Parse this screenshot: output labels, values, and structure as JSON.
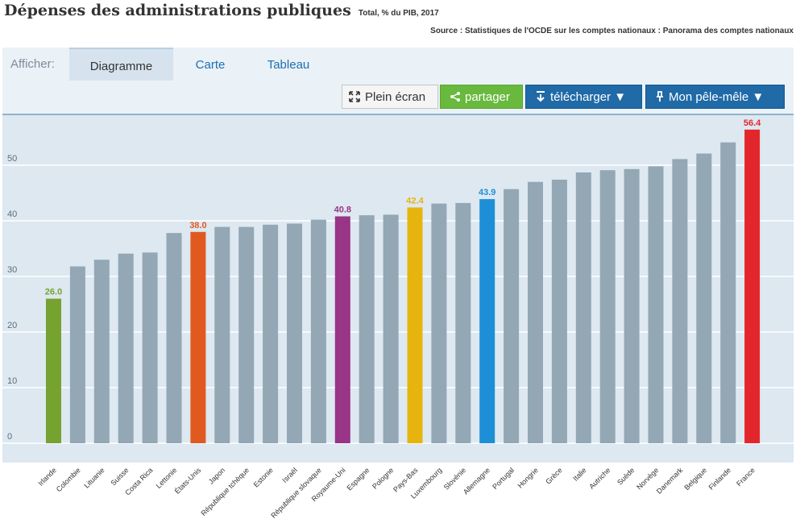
{
  "header": {
    "title": "Dépenses des administrations publiques",
    "subtitle": "Total, % du PIB, 2017",
    "source": "Source : Statistiques de l'OCDE sur les comptes nationaux : Panorama des comptes nationaux"
  },
  "controls": {
    "afficher_label": "Afficher:",
    "tabs": [
      "Diagramme",
      "Carte",
      "Tableau"
    ],
    "active_tab": "Diagramme",
    "buttons": {
      "fullscreen": "Plein écran",
      "share": "partager",
      "download": "télécharger ▼",
      "pele_mele": "Mon pêle-mêle ▼"
    }
  },
  "colors": {
    "default_bar": "#93a7b5",
    "highlight_green": "#76a22f",
    "highlight_orange": "#e05a1f",
    "highlight_purple": "#9a3487",
    "highlight_yellow": "#e6b40c",
    "highlight_blue": "#1d8fd6",
    "highlight_red": "#e3262c",
    "plot_background": "#dde8f1",
    "gridline": "#ffffff"
  },
  "chart_data": {
    "type": "bar",
    "ylim": [
      0,
      60
    ],
    "yticks": [
      0,
      10,
      20,
      30,
      40,
      50
    ],
    "grid": true,
    "categories": [
      "Irlande",
      "Colombie",
      "Lituanie",
      "Suisse",
      "Costa Rica",
      "Lettonie",
      "États-Unis",
      "Japon",
      "République tchèque",
      "Estonie",
      "Israël",
      "République slovaque",
      "Royaume-Uni",
      "Espagne",
      "Pologne",
      "Pays-Bas",
      "Luxembourg",
      "Slovénie",
      "Allemagne",
      "Portugal",
      "Hongrie",
      "Grèce",
      "Italie",
      "Autriche",
      "Suède",
      "Norvège",
      "Danemark",
      "Belgique",
      "Finlande",
      "France"
    ],
    "values": [
      26.0,
      31.8,
      33.0,
      34.1,
      34.3,
      37.8,
      38.0,
      38.9,
      38.9,
      39.3,
      39.5,
      40.2,
      40.8,
      41.0,
      41.1,
      42.4,
      43.1,
      43.2,
      43.9,
      45.7,
      47.0,
      47.4,
      48.7,
      49.1,
      49.3,
      49.8,
      51.1,
      52.1,
      54.1,
      56.4
    ],
    "highlights": [
      {
        "category": "Irlande",
        "label": "26.0",
        "color": "#76a22f"
      },
      {
        "category": "États-Unis",
        "label": "38.0",
        "color": "#e05a1f"
      },
      {
        "category": "Royaume-Uni",
        "label": "40.8",
        "color": "#9a3487"
      },
      {
        "category": "Pays-Bas",
        "label": "42.4",
        "color": "#e6b40c"
      },
      {
        "category": "Allemagne",
        "label": "43.9",
        "color": "#1d8fd6"
      },
      {
        "category": "France",
        "label": "56.4",
        "color": "#e3262c"
      }
    ]
  }
}
